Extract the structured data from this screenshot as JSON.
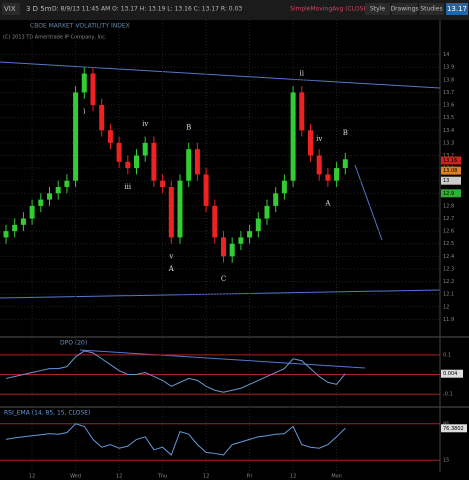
{
  "header": {
    "symbol": "VIX",
    "period": "3 D 5m",
    "ohlc": "D: 8/9/13 11:45 AM  O: 13.17  H: 13.19  L: 13.16  C: 13.17  R: 0.03",
    "company": "CBOE MARKET VOLATILITY INDEX",
    "study": "SimpleMovingAvg (CLOSE, 200, 0, no)",
    "last": "13.17",
    "buttons": [
      "Style",
      "Drawings",
      "Studies"
    ],
    "watermark": "(C) 2013 TD Ameritrade IP Company, Inc."
  },
  "chart_data": [
    {
      "type": "candlestick",
      "up_color": "#33cc33",
      "down_color": "#ee2222",
      "x": [
        null,
        null,
        null,
        "12",
        null,
        null,
        null,
        null,
        "Wed",
        null,
        null,
        null,
        null,
        "12",
        null,
        null,
        null,
        null,
        "Thu",
        null,
        null,
        null,
        null,
        "12",
        null,
        null,
        null,
        null,
        "Fri",
        null,
        null,
        null,
        null,
        "12",
        null,
        null,
        null,
        null,
        "Mon",
        null
      ],
      "open": [
        12.55,
        12.6,
        12.65,
        12.7,
        12.8,
        12.85,
        12.9,
        12.95,
        13.0,
        13.7,
        13.85,
        13.6,
        13.4,
        13.3,
        13.15,
        13.1,
        13.2,
        13.3,
        13.0,
        12.95,
        12.55,
        13.0,
        13.25,
        13.05,
        12.8,
        12.55,
        12.4,
        12.5,
        12.55,
        12.6,
        12.7,
        12.8,
        12.9,
        13.0,
        13.7,
        13.4,
        13.2,
        13.05,
        13.0,
        13.1
      ],
      "high": [
        12.65,
        12.7,
        12.75,
        12.85,
        12.9,
        12.95,
        13.0,
        13.05,
        13.75,
        13.9,
        13.9,
        13.65,
        13.45,
        13.35,
        13.2,
        13.25,
        13.35,
        13.35,
        13.05,
        13.0,
        13.05,
        13.3,
        13.3,
        13.1,
        12.85,
        12.6,
        12.55,
        12.6,
        12.65,
        12.75,
        12.85,
        12.95,
        13.05,
        13.75,
        13.75,
        13.45,
        13.25,
        13.1,
        13.15,
        13.22
      ],
      "low": [
        12.5,
        12.55,
        12.6,
        12.65,
        12.75,
        12.8,
        12.85,
        12.9,
        12.95,
        13.65,
        13.55,
        13.35,
        13.25,
        13.1,
        13.05,
        13.05,
        13.15,
        12.95,
        12.9,
        12.5,
        12.5,
        12.95,
        13.0,
        12.75,
        12.5,
        12.35,
        12.35,
        12.45,
        12.5,
        12.55,
        12.65,
        12.75,
        12.85,
        12.95,
        13.35,
        13.15,
        13.0,
        12.95,
        12.95,
        13.05
      ],
      "close": [
        12.6,
        12.65,
        12.7,
        12.8,
        12.85,
        12.9,
        12.95,
        13.0,
        13.7,
        13.85,
        13.6,
        13.4,
        13.3,
        13.15,
        13.1,
        13.2,
        13.3,
        13.0,
        12.95,
        12.55,
        13.0,
        13.25,
        13.05,
        12.8,
        12.55,
        12.4,
        12.5,
        12.55,
        12.6,
        12.7,
        12.8,
        12.9,
        13.0,
        13.7,
        13.4,
        13.2,
        13.05,
        13.0,
        13.1,
        13.17
      ],
      "ylim": [
        11.8,
        14.1
      ],
      "yticks": [
        11.9,
        12,
        12.1,
        12.2,
        12.3,
        12.4,
        12.5,
        12.6,
        12.7,
        12.8,
        12.9,
        13,
        13.1,
        13.2,
        13.3,
        13.4,
        13.5,
        13.6,
        13.7,
        13.8,
        13.9,
        14
      ],
      "grid": true,
      "price_labels": [
        {
          "value": 13.16,
          "label": "13.16",
          "color": "#d02020"
        },
        {
          "value": 13.08,
          "label": "13.08",
          "color": "#e08020"
        },
        {
          "value": 13,
          "label": "13",
          "color": "#cccccc"
        },
        {
          "value": 12.9,
          "label": "12.9",
          "color": "#30b030"
        }
      ],
      "annotations": [
        {
          "text": "i",
          "at": 9,
          "price": 13.55
        },
        {
          "text": "iii",
          "at": 14,
          "price": 12.95
        },
        {
          "text": "iv",
          "at": 16,
          "price": 13.45
        },
        {
          "text": "v",
          "at": 19,
          "price": 12.4
        },
        {
          "text": "A",
          "at": 19,
          "price": 12.3
        },
        {
          "text": "B",
          "at": 21,
          "price": 13.42
        },
        {
          "text": "C",
          "at": 25,
          "price": 12.22
        },
        {
          "text": "ii",
          "at": 34,
          "price": 13.85
        },
        {
          "text": "iv",
          "at": 36,
          "price": 13.33
        },
        {
          "text": "A",
          "at": 37,
          "price": 12.82
        },
        {
          "text": "B",
          "at": 39,
          "price": 13.38
        }
      ]
    },
    {
      "type": "line",
      "title": "DPO (20)",
      "color": "#6699cc",
      "values": [
        -0.02,
        -0.01,
        0,
        0.01,
        0.02,
        0.03,
        0.03,
        0.04,
        0.09,
        0.12,
        0.11,
        0.08,
        0.05,
        0.02,
        0,
        0,
        0.01,
        -0.01,
        -0.03,
        -0.06,
        -0.04,
        -0.02,
        -0.03,
        -0.06,
        -0.08,
        -0.09,
        -0.08,
        -0.07,
        -0.05,
        -0.03,
        -0.01,
        0.01,
        0.03,
        0.08,
        0.07,
        0.03,
        -0.01,
        -0.04,
        -0.05,
        0.004
      ],
      "last_label": "0.004",
      "ylim": [
        -0.15,
        0.15
      ],
      "yticks": [
        -0.1,
        0,
        0.1
      ]
    },
    {
      "type": "line",
      "title": "RSI_EMA (14, 85, 15, CLOSE)",
      "color": "#6699dd",
      "values": [
        55,
        58,
        60,
        62,
        64,
        66,
        65,
        68,
        85,
        80,
        55,
        40,
        45,
        38,
        42,
        55,
        60,
        35,
        40,
        25,
        70,
        65,
        45,
        30,
        28,
        25,
        45,
        50,
        55,
        60,
        62,
        65,
        66,
        80,
        45,
        40,
        38,
        45,
        60,
        76.3802
      ],
      "ylim": [
        0,
        100
      ],
      "yticks": [
        15,
        85
      ]
    }
  ]
}
